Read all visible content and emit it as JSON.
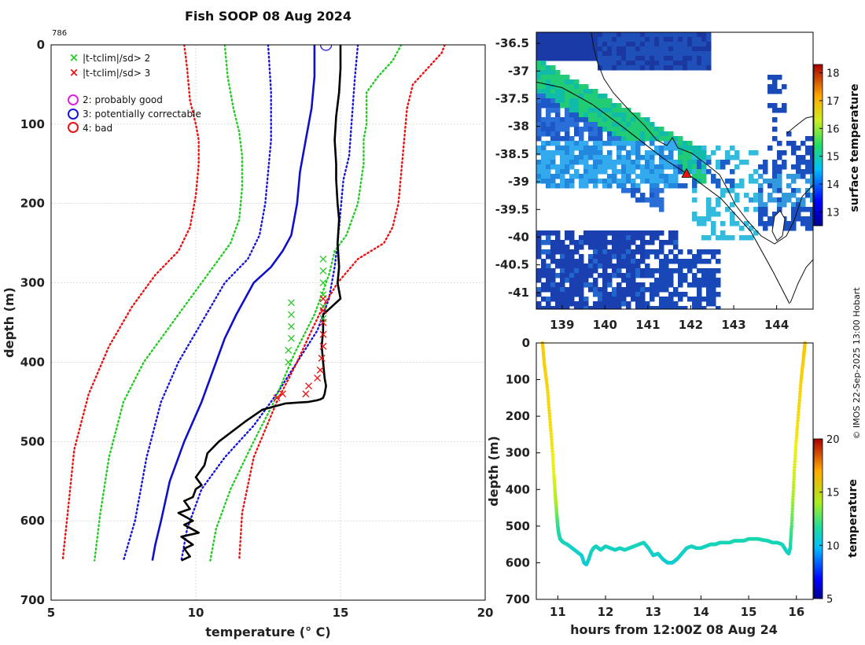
{
  "figure": {
    "title": "Fish SOOP 08 Aug 2024",
    "credit": "© IMOS 22-Sep-2025 13:00 Hobart"
  },
  "colors": {
    "profile": "#000000",
    "sd2": "#22cc22",
    "sd3": "#ee1111",
    "sd1": "#1515dd",
    "clim": "#1010cc",
    "grid": "#c8c8c8"
  },
  "chart_data": [
    {
      "id": "profile",
      "type": "line",
      "corner_label": "786",
      "xlabel": "temperature (° C)",
      "ylabel": "depth (m)",
      "xlim": [
        5,
        20
      ],
      "ylim": [
        700,
        0
      ],
      "xticks": [
        5,
        10,
        15,
        20
      ],
      "yticks": [
        0,
        100,
        200,
        300,
        400,
        500,
        600,
        700
      ],
      "legend": {
        "placement": "top-left",
        "entries": [
          {
            "marker": "x",
            "color": "#22cc22",
            "label": "|t-tclim|/sd> 2"
          },
          {
            "marker": "x",
            "color": "#ee1111",
            "label": "|t-tclim|/sd> 3"
          },
          {
            "marker": "o",
            "color": "#dd22dd",
            "label": "2: probably good"
          },
          {
            "marker": "o",
            "color": "#1515dd",
            "label": "3: potentially correctable"
          },
          {
            "marker": "o",
            "color": "#ee1111",
            "label": "4: bad"
          }
        ]
      },
      "series": [
        {
          "name": "climatology mean",
          "style": "solid",
          "color": "#1010cc",
          "x": [
            14.1,
            14.1,
            14.0,
            13.8,
            13.6,
            13.5,
            13.3,
            13.0,
            12.6,
            12.0,
            11.4,
            11.0,
            10.6,
            10.2,
            9.6,
            9.1,
            8.8,
            8.6,
            8.5
          ],
          "y": [
            0,
            40,
            80,
            120,
            160,
            200,
            240,
            260,
            280,
            300,
            340,
            370,
            410,
            450,
            500,
            550,
            600,
            630,
            650
          ]
        },
        {
          "name": "mean - 1 sd",
          "style": "dotted",
          "color": "#1515dd",
          "x": [
            12.5,
            12.6,
            12.6,
            12.5,
            12.4,
            12.2,
            11.8,
            11.0,
            10.2,
            9.4,
            8.8,
            8.3,
            7.9,
            7.5
          ],
          "y": [
            0,
            60,
            120,
            160,
            200,
            240,
            270,
            300,
            350,
            400,
            450,
            520,
            600,
            650
          ]
        },
        {
          "name": "mean + 1 sd",
          "style": "dotted",
          "color": "#1515dd",
          "x": [
            15.6,
            15.5,
            15.4,
            15.3,
            15.1,
            15.0,
            14.9,
            14.8,
            14.6,
            14.2,
            13.5,
            12.8,
            12.0,
            11.0,
            10.2,
            9.7,
            9.5
          ],
          "y": [
            0,
            40,
            90,
            140,
            170,
            210,
            250,
            280,
            320,
            360,
            400,
            440,
            480,
            520,
            560,
            610,
            650
          ]
        },
        {
          "name": "mean - 2 sd",
          "style": "dotted",
          "color": "#22cc22",
          "x": [
            11.0,
            11.1,
            11.3,
            11.5,
            11.6,
            11.6,
            11.5,
            11.2,
            10.6,
            9.8,
            9.0,
            8.2,
            7.5,
            7.0,
            6.7,
            6.5
          ],
          "y": [
            0,
            40,
            80,
            110,
            140,
            180,
            220,
            250,
            280,
            320,
            360,
            400,
            450,
            520,
            590,
            650
          ]
        },
        {
          "name": "mean + 2 sd",
          "style": "dotted",
          "color": "#22cc22",
          "x": [
            17.1,
            16.8,
            16.3,
            15.9,
            15.9,
            15.8,
            15.8,
            15.6,
            15.2,
            14.8,
            14.6,
            14.1,
            13.4,
            12.7,
            12.0,
            11.2,
            10.7,
            10.5
          ],
          "y": [
            0,
            20,
            40,
            60,
            100,
            120,
            150,
            200,
            240,
            260,
            290,
            340,
            390,
            450,
            500,
            560,
            610,
            650
          ]
        },
        {
          "name": "mean - 3 sd",
          "style": "dotted",
          "color": "#ee1111",
          "x": [
            9.6,
            9.7,
            9.8,
            10.0,
            10.1,
            10.1,
            10.0,
            9.8,
            9.4,
            8.6,
            7.8,
            7.0,
            6.3,
            5.8,
            5.6,
            5.4
          ],
          "y": [
            0,
            30,
            70,
            100,
            120,
            150,
            190,
            230,
            260,
            290,
            330,
            380,
            440,
            510,
            580,
            650
          ]
        },
        {
          "name": "mean + 3 sd",
          "style": "dotted",
          "color": "#ee1111",
          "x": [
            18.6,
            18.5,
            18.0,
            17.5,
            17.3,
            17.2,
            17.1,
            17.0,
            16.8,
            16.5,
            15.6,
            14.9,
            14.4,
            14.0,
            13.5,
            12.8,
            12.0,
            11.6,
            11.5
          ],
          "y": [
            0,
            10,
            30,
            50,
            80,
            120,
            160,
            200,
            230,
            250,
            270,
            300,
            330,
            360,
            400,
            450,
            520,
            590,
            650
          ]
        },
        {
          "name": "observed profile",
          "style": "solid-thick",
          "color": "#000000",
          "x": [
            15.0,
            15.0,
            14.95,
            14.85,
            14.8,
            14.85,
            14.85,
            14.9,
            14.95,
            14.9,
            14.95,
            14.9,
            15.0,
            14.4,
            14.4,
            14.35,
            14.4,
            14.45,
            14.5,
            14.45,
            14.4,
            14.3,
            14.2,
            13.9,
            13.1,
            12.3,
            11.7,
            10.8,
            10.4,
            10.3,
            10.0,
            10.2,
            10.0,
            9.9,
            9.6,
            9.8,
            9.4,
            9.9,
            9.6,
            10.1,
            9.5,
            9.9,
            9.6,
            9.8,
            9.5
          ],
          "y": [
            0,
            30,
            60,
            90,
            120,
            150,
            170,
            200,
            220,
            250,
            280,
            300,
            320,
            340,
            360,
            380,
            400,
            420,
            430,
            440,
            445,
            447,
            448,
            450,
            452,
            460,
            475,
            500,
            515,
            530,
            545,
            555,
            560,
            570,
            575,
            585,
            590,
            600,
            605,
            615,
            620,
            630,
            635,
            645,
            650
          ]
        },
        {
          "name": "flagged |t-tclim|/sd>2",
          "style": "markers-x",
          "color": "#22cc22",
          "x": [
            14.4,
            14.4,
            14.4,
            14.4,
            14.4,
            14.4,
            13.3,
            13.3,
            13.3,
            13.3,
            13.2,
            13.2
          ],
          "y": [
            270,
            285,
            300,
            315,
            330,
            345,
            325,
            340,
            355,
            370,
            385,
            400
          ]
        },
        {
          "name": "flagged |t-tclim|/sd>3",
          "style": "markers-x",
          "color": "#ee1111",
          "x": [
            14.4,
            14.4,
            14.4,
            14.4,
            14.4,
            14.35,
            14.3,
            14.2,
            13.9,
            13.8,
            13.0,
            12.8
          ],
          "y": [
            320,
            335,
            350,
            365,
            380,
            395,
            410,
            420,
            430,
            440,
            440,
            445
          ]
        }
      ],
      "flag_circle": {
        "x": 14.5,
        "y": 0
      }
    },
    {
      "id": "map",
      "type": "heatmap",
      "xticks": [
        139,
        140,
        141,
        142,
        143,
        144
      ],
      "yticks": [
        -36.5,
        -37,
        -37.5,
        -38,
        -38.5,
        -39,
        -39.5,
        -40,
        -40.5,
        -41
      ],
      "xlim": [
        138.4,
        144.85
      ],
      "ylim": [
        -41.3,
        -36.3
      ],
      "marker": {
        "lon": 141.9,
        "lat": -38.85,
        "color": "#ee1111"
      },
      "track": [
        [
          138.4,
          -37.2
        ],
        [
          139.0,
          -37.3
        ],
        [
          139.7,
          -37.6
        ],
        [
          140.4,
          -38.0
        ],
        [
          140.9,
          -38.3
        ],
        [
          141.4,
          -38.6
        ],
        [
          142.0,
          -38.9
        ],
        [
          142.7,
          -39.3
        ],
        [
          143.4,
          -39.9
        ],
        [
          143.9,
          -40.6
        ],
        [
          144.3,
          -41.2
        ]
      ],
      "colorbar": {
        "label": "surface temperature",
        "ticks": [
          13,
          14,
          15,
          16,
          17,
          18
        ],
        "range": [
          12.5,
          18.3
        ]
      }
    },
    {
      "id": "timeseries",
      "type": "scatter",
      "xlabel": "hours from 12:00Z 08 Aug 24",
      "ylabel": "depth (m)",
      "xlim": [
        10.55,
        16.35
      ],
      "ylim": [
        700,
        0
      ],
      "xticks": [
        11,
        12,
        13,
        14,
        15,
        16
      ],
      "yticks": [
        0,
        100,
        200,
        300,
        400,
        500,
        600,
        700
      ],
      "t": [
        10.68,
        10.72,
        10.78,
        10.83,
        10.88,
        10.92,
        10.95,
        10.98,
        11.0,
        11.02,
        11.05,
        11.08,
        11.12,
        11.2,
        11.3,
        11.4,
        11.5,
        11.55,
        11.6,
        11.65,
        11.7,
        11.75,
        11.8,
        11.85,
        11.9,
        12.0,
        12.1,
        12.2,
        12.3,
        12.4,
        12.5,
        12.6,
        12.7,
        12.8,
        12.9,
        13.0,
        13.1,
        13.2,
        13.3,
        13.4,
        13.45,
        13.5,
        13.6,
        13.7,
        13.8,
        13.9,
        14.0,
        14.1,
        14.2,
        14.3,
        14.4,
        14.5,
        14.6,
        14.7,
        14.8,
        14.9,
        15.0,
        15.1,
        15.2,
        15.3,
        15.4,
        15.5,
        15.6,
        15.7,
        15.75,
        15.8,
        15.84,
        15.87,
        15.9,
        15.93,
        15.96,
        16.0,
        16.05,
        16.1,
        16.15,
        16.18
      ],
      "depth": [
        0,
        60,
        120,
        200,
        280,
        360,
        420,
        470,
        500,
        520,
        535,
        540,
        545,
        550,
        560,
        570,
        580,
        600,
        605,
        590,
        570,
        560,
        555,
        560,
        565,
        555,
        560,
        565,
        560,
        565,
        560,
        555,
        550,
        545,
        560,
        580,
        575,
        590,
        600,
        600,
        595,
        590,
        575,
        560,
        555,
        560,
        560,
        555,
        550,
        550,
        545,
        545,
        545,
        540,
        540,
        540,
        535,
        535,
        535,
        538,
        540,
        545,
        545,
        550,
        560,
        570,
        575,
        560,
        500,
        420,
        340,
        260,
        180,
        100,
        40,
        0
      ],
      "temperature": [
        17.8,
        17.7,
        17.6,
        17.5,
        17.3,
        16.5,
        14.5,
        13.0,
        12.0,
        11.5,
        11.3,
        11.2,
        11.2,
        11.1,
        11.0,
        10.9,
        10.8,
        10.7,
        10.6,
        10.8,
        11.0,
        11.1,
        11.1,
        11.0,
        11.0,
        11.1,
        11.0,
        11.0,
        11.1,
        11.0,
        11.1,
        11.1,
        11.2,
        11.2,
        11.0,
        10.8,
        10.9,
        10.7,
        10.6,
        10.6,
        10.7,
        10.8,
        10.9,
        11.0,
        11.1,
        11.0,
        11.0,
        11.1,
        11.2,
        11.2,
        11.2,
        11.2,
        11.3,
        11.3,
        11.3,
        11.3,
        11.4,
        11.4,
        11.4,
        11.3,
        11.3,
        11.2,
        11.2,
        11.2,
        11.1,
        11.0,
        11.0,
        11.2,
        12.5,
        14.0,
        16.0,
        17.2,
        17.5,
        17.7,
        17.8,
        17.9
      ],
      "colorbar": {
        "label": "temperature",
        "ticks": [
          5,
          10,
          15,
          20
        ],
        "range": [
          5,
          20
        ]
      }
    }
  ]
}
